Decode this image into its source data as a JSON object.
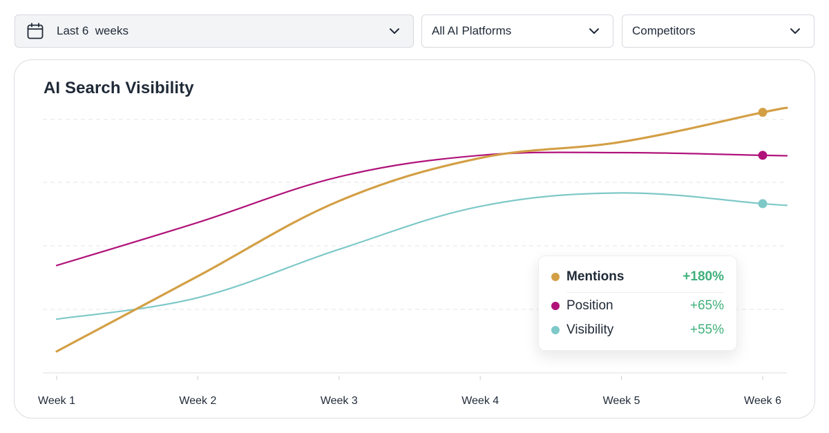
{
  "filters": {
    "date": {
      "label": "Last 6  weeks",
      "icon": "calendar-icon"
    },
    "platform": {
      "label": "All AI Platforms",
      "icon": "chevron-down-icon"
    },
    "competitors": {
      "label": "Competitors",
      "icon": "chevron-down-icon"
    }
  },
  "card": {
    "title": "AI Search Visibility"
  },
  "tooltip": {
    "rows": [
      {
        "name": "Mentions",
        "value": "+180%",
        "color": "#d39f45"
      },
      {
        "name": "Position",
        "value": "+65%",
        "color": "#b0127a"
      },
      {
        "name": "Visibility",
        "value": "+55%",
        "color": "#7ec8c8"
      }
    ]
  },
  "chart_data": {
    "type": "line",
    "title": "AI Search Visibility",
    "categories": [
      "Week 1",
      "Week 2",
      "Week 3",
      "Week 4",
      "Week 5",
      "Week 6"
    ],
    "ylim": [
      0,
      100
    ],
    "grid": true,
    "series": [
      {
        "name": "Mentions",
        "color": "#d39f45",
        "values": [
          8,
          36,
          64,
          80,
          86,
          97
        ]
      },
      {
        "name": "Position",
        "color": "#b0127a",
        "values": [
          40,
          56,
          73,
          81,
          82,
          81
        ]
      },
      {
        "name": "Visibility",
        "color": "#7ec8c8",
        "values": [
          20,
          28,
          46,
          62,
          67,
          63
        ]
      }
    ]
  }
}
